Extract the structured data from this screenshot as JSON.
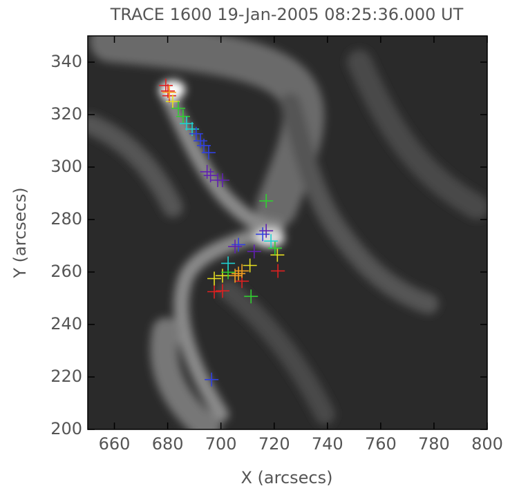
{
  "chart_data": {
    "type": "scatter",
    "title": "TRACE 1600 19-Jan-2005 08:25:36.000 UT",
    "x_label": "X (arcsecs)",
    "y_label": "Y (arcsecs)",
    "xlim": [
      650,
      800
    ],
    "ylim": [
      200,
      350
    ],
    "xticks": [
      660,
      680,
      700,
      720,
      740,
      760,
      780,
      800
    ],
    "yticks": [
      200,
      220,
      240,
      260,
      280,
      300,
      320,
      340
    ],
    "series": [
      {
        "color": "#e02020",
        "x": [
          679.3,
          680.1,
          680.6,
          697.5,
          700.6,
          721.4,
          707.9
        ],
        "y": [
          331.1,
          329.0,
          327.2,
          252.5,
          252.8,
          260.4,
          256.5
        ]
      },
      {
        "color": "#f5a020",
        "x": [
          680.6,
          706.6,
          707.9,
          705.3
        ],
        "y": [
          328.5,
          259.4,
          260.4,
          258.6
        ]
      },
      {
        "color": "#e8e020",
        "x": [
          681.9,
          697.5,
          700.6,
          710.9,
          721.2
        ],
        "y": [
          325.0,
          257.5,
          258.6,
          262.5,
          266.5
        ]
      },
      {
        "color": "#30d030",
        "x": [
          684.0,
          685.8,
          717.0,
          711.3,
          702.7,
          720.3
        ],
        "y": [
          322.4,
          319.3,
          287.1,
          250.7,
          259.9,
          269.1
        ]
      },
      {
        "color": "#20d0d0",
        "x": [
          687.1,
          689.2,
          718.8,
          702.7
        ],
        "y": [
          316.6,
          314.5,
          271.8,
          263.3
        ]
      },
      {
        "color": "#3040e0",
        "x": [
          690.7,
          692.3,
          693.6,
          695.4,
          715.7,
          706.6,
          696.5
        ],
        "y": [
          312.7,
          310.0,
          308.2,
          305.5,
          274.4,
          270.4,
          219.0
        ]
      },
      {
        "color": "#6020b0",
        "x": [
          694.8,
          696.1,
          698.8,
          700.6,
          705.3,
          712.5,
          717.0
        ],
        "y": [
          298.2,
          296.8,
          295.0,
          295.0,
          269.7,
          267.8,
          275.7
        ]
      }
    ]
  }
}
